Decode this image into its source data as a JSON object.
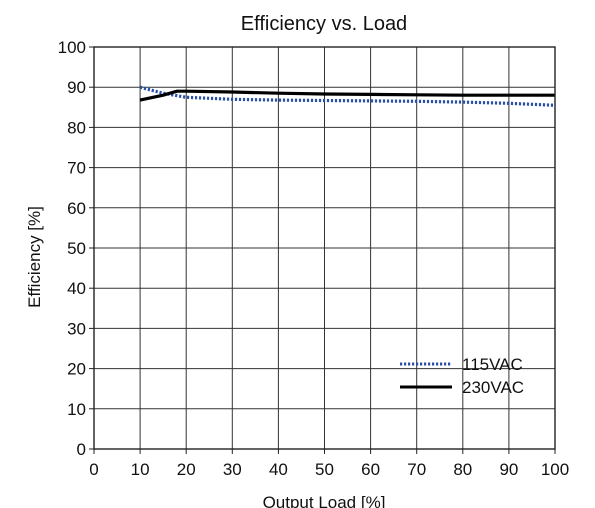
{
  "chart_data": {
    "type": "line",
    "title": "Efficiency vs. Load",
    "xlabel": "Output Load [%]",
    "ylabel": "Efficiency [%]",
    "xlim": [
      0,
      100
    ],
    "ylim": [
      0,
      100
    ],
    "xticks": [
      0,
      10,
      20,
      30,
      40,
      50,
      60,
      70,
      80,
      90,
      100
    ],
    "yticks": [
      0,
      10,
      20,
      30,
      40,
      50,
      60,
      70,
      80,
      90,
      100
    ],
    "grid": true,
    "legend_position": "bottom-right",
    "series": [
      {
        "name": "115VAC",
        "style": "dotted",
        "color": "#2a4fa8",
        "x": [
          10,
          15,
          20,
          30,
          40,
          50,
          60,
          70,
          80,
          90,
          100
        ],
        "y": [
          90,
          88.5,
          87.5,
          87,
          86.8,
          86.7,
          86.6,
          86.5,
          86.3,
          86,
          85.5
        ]
      },
      {
        "name": "230VAC",
        "style": "solid",
        "color": "#000000",
        "x": [
          10,
          15,
          18,
          20,
          30,
          40,
          50,
          60,
          70,
          80,
          90,
          100
        ],
        "y": [
          86.8,
          88,
          89,
          89,
          88.8,
          88.5,
          88.3,
          88.2,
          88.1,
          88,
          88,
          88
        ]
      }
    ]
  }
}
